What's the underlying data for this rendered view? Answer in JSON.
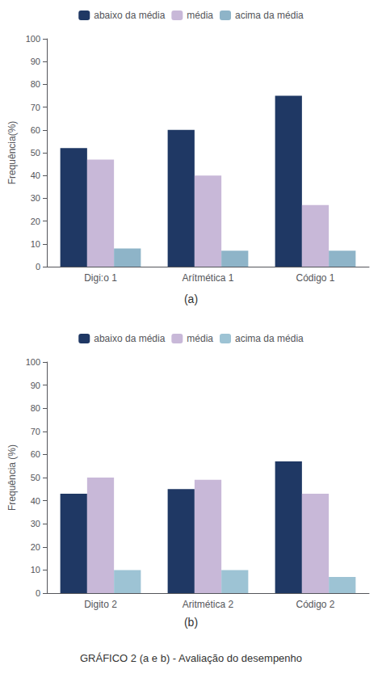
{
  "title": "GRÁFICO 2 (a e b) - Avaliação do desempenho",
  "chart_data": [
    {
      "type": "bar",
      "title": "(a)",
      "categories": [
        "Digi:o 1",
        "Arítmética 1",
        "Código 1"
      ],
      "ylabel": "Frequência(%)",
      "series": [
        {
          "name": "abaixo da média",
          "color": "#1F3864",
          "values": [
            52,
            60,
            75
          ]
        },
        {
          "name": "média",
          "color": "#C8B8D8",
          "values": [
            47,
            40,
            27
          ]
        },
        {
          "name": "acima da média",
          "color": "#8EB4C8",
          "values": [
            8,
            7,
            7
          ]
        }
      ],
      "ylim": [
        0,
        100
      ],
      "yticks": [
        0,
        10,
        20,
        30,
        40,
        50,
        60,
        70,
        80,
        90,
        100
      ],
      "grid": false,
      "legend": "top"
    },
    {
      "type": "bar",
      "title": "(b)",
      "categories": [
        "Digito 2",
        "Aritmética 2",
        "Código 2"
      ],
      "ylabel": "Frequência (%)",
      "series": [
        {
          "name": "abaixo da média",
          "color": "#1F3864",
          "values": [
            43,
            45,
            57
          ]
        },
        {
          "name": "média",
          "color": "#C8B8D8",
          "values": [
            50,
            49,
            43
          ]
        },
        {
          "name": "acima da média",
          "color": "#9DC3D4",
          "values": [
            10,
            10,
            7
          ]
        }
      ],
      "ylim": [
        0,
        100
      ],
      "yticks": [
        0,
        10,
        20,
        30,
        40,
        50,
        60,
        70,
        80,
        90,
        100
      ],
      "grid": false,
      "legend": "top"
    }
  ]
}
